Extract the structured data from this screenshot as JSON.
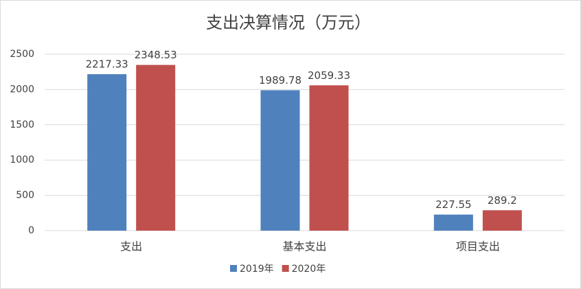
{
  "chart_data": {
    "type": "bar",
    "title": "支出决算情况（万元）",
    "categories": [
      "支出",
      "基本支出",
      "项目支出"
    ],
    "series": [
      {
        "name": "2019年",
        "color": "#4f81bd",
        "values": [
          2217.33,
          1989.78,
          227.55
        ]
      },
      {
        "name": "2020年",
        "color": "#c0504d",
        "values": [
          2348.53,
          2059.33,
          289.2
        ]
      }
    ],
    "ylim": [
      0,
      2500
    ],
    "yticks": [
      0,
      500,
      1000,
      1500,
      2000,
      2500
    ],
    "grid": true,
    "legend": "bottom"
  }
}
